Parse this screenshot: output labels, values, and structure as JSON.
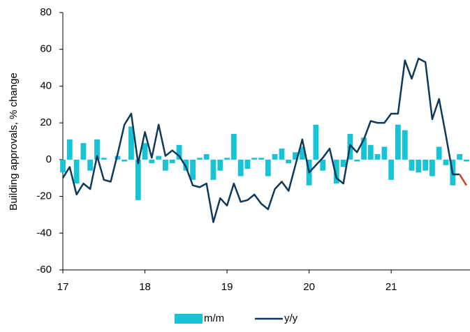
{
  "chart_data": {
    "type": "bar_line",
    "y_label": "Building approvals,  % change",
    "x": [
      17,
      17.083,
      17.167,
      17.25,
      17.333,
      17.417,
      17.5,
      17.583,
      17.667,
      17.75,
      17.833,
      17.917,
      18,
      18.083,
      18.167,
      18.25,
      18.333,
      18.417,
      18.5,
      18.583,
      18.667,
      18.75,
      18.833,
      18.917,
      19,
      19.083,
      19.167,
      19.25,
      19.333,
      19.417,
      19.5,
      19.583,
      19.667,
      19.75,
      19.833,
      19.917,
      20,
      20.083,
      20.167,
      20.25,
      20.333,
      20.417,
      20.5,
      20.583,
      20.667,
      20.75,
      20.833,
      20.917,
      21,
      21.083,
      21.167,
      21.25,
      21.333,
      21.417,
      21.5,
      21.583,
      21.667,
      21.75,
      21.833,
      21.917
    ],
    "series": [
      {
        "name": "m/m",
        "kind": "bar",
        "color": "#17c3d6",
        "values": [
          -7,
          11,
          -13,
          9,
          -6,
          11,
          1,
          0,
          2,
          -1,
          18,
          -22,
          9,
          -2,
          2,
          -6,
          -2,
          8,
          -6,
          -11,
          1,
          3,
          -11,
          -6,
          1,
          14,
          -9,
          -5,
          1,
          1,
          -9,
          3,
          6,
          -2,
          4,
          7,
          -14,
          19,
          -6,
          0,
          -13,
          -4,
          14,
          -1,
          12,
          8,
          3,
          7,
          -11,
          19,
          16,
          -6,
          -7,
          -6,
          -9,
          7,
          -3,
          -14,
          3,
          -1
        ]
      },
      {
        "name": "y/y",
        "kind": "line",
        "color": "#0d3a5c",
        "last_segment_color": "#d0421b",
        "values": [
          -10,
          -4,
          -19,
          -13,
          -16,
          2,
          -11,
          -12,
          3,
          19,
          25,
          -2,
          15,
          1,
          19,
          2,
          5,
          2,
          -4,
          -14,
          -15,
          -13,
          -34,
          -21,
          -25,
          -13,
          -23,
          -22,
          -19,
          -24,
          -27,
          -16,
          -12,
          -17,
          -3,
          11,
          -7,
          -3,
          1,
          6,
          -10,
          -13,
          8,
          4,
          11,
          21,
          20,
          20,
          25,
          25,
          54,
          44,
          55,
          53,
          22,
          33,
          13,
          -8,
          -8,
          -14
        ]
      }
    ],
    "xlim": [
      17,
      21.96
    ],
    "xticks": [
      17,
      18,
      19,
      20,
      21
    ],
    "ylim": [
      -60,
      80
    ],
    "yticks": [
      -60,
      -40,
      -20,
      0,
      20,
      40,
      60,
      80
    ]
  }
}
